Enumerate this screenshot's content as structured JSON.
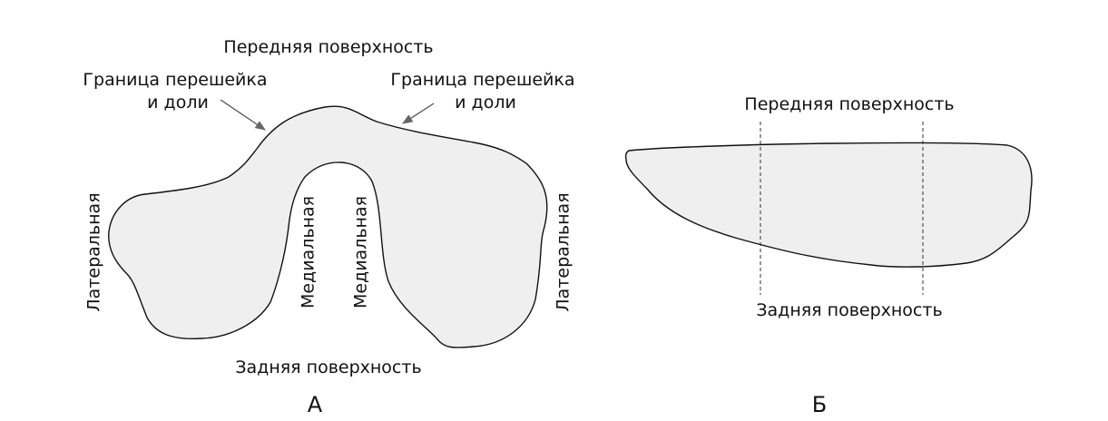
{
  "colors": {
    "shape_fill": "#efefef",
    "stroke": "#111111",
    "arrow": "#666666"
  },
  "panel_a": {
    "letter": "А",
    "anterior_surface": "Передняя поверхность",
    "posterior_surface": "Задняя поверхность",
    "isthmus_border_left_line1": "Граница перешейка",
    "isthmus_border_left_line2": "и доли",
    "isthmus_border_right_line1": "Граница перешейка",
    "isthmus_border_right_line2": "и доли",
    "lateral_left": "Латеральная",
    "medial_left": "Медиальная",
    "medial_right": "Медиальная",
    "lateral_right": "Латеральная"
  },
  "panel_b": {
    "letter": "Б",
    "anterior_surface": "Передняя поверхность",
    "posterior_surface": "Задняя поверхность"
  }
}
